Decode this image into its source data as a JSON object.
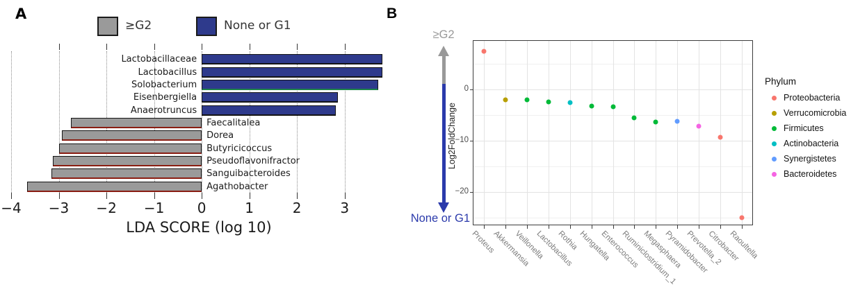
{
  "figure": {
    "panelA_letter": "A",
    "panelB_letter": "B"
  },
  "chart_data": [
    {
      "panel": "A",
      "type": "bar",
      "orientation": "horizontal",
      "xlabel": "LDA SCORE (log 10)",
      "xlim": [
        -4.0,
        3.88
      ],
      "xticks_top": [
        -3,
        -2,
        -1,
        0,
        1,
        2,
        3
      ],
      "xticks_bottom": [
        -4,
        -3,
        -2,
        -1,
        0,
        1,
        2,
        3
      ],
      "gridlines": [
        -4,
        -3,
        -2,
        -1,
        0,
        1,
        2,
        3
      ],
      "grid_style": "dotted",
      "groups": [
        {
          "name": "≥G2",
          "color": "#9a9a9a"
        },
        {
          "name": "None or G1",
          "color": "#2e3a8c"
        }
      ],
      "bars": [
        {
          "taxon": "Lactobacillaceae",
          "value": 3.79,
          "group": "None or G1",
          "edge": "#141414"
        },
        {
          "taxon": "Lactobacillus",
          "value": 3.79,
          "group": "None or G1",
          "edge": "#141414"
        },
        {
          "taxon": "Solobacterium",
          "value": 3.71,
          "group": "None or G1",
          "edge": "#1e8449"
        },
        {
          "taxon": "Eisenbergiella",
          "value": 2.86,
          "group": "None or G1",
          "edge": "#141414"
        },
        {
          "taxon": "Anaerotruncus",
          "value": 2.82,
          "group": "None or G1",
          "edge": "#141414"
        },
        {
          "taxon": "Faecalitalea",
          "value": -2.75,
          "group": "≥G2",
          "edge": "#8a1d12"
        },
        {
          "taxon": "Dorea",
          "value": -2.93,
          "group": "≥G2",
          "edge": "#8a1d12"
        },
        {
          "taxon": "Butyricicoccus",
          "value": -3.0,
          "group": "≥G2",
          "edge": "#8a1d12"
        },
        {
          "taxon": "Pseudoflavonifractor",
          "value": -3.13,
          "group": "≥G2",
          "edge": "#8a1d12"
        },
        {
          "taxon": "Sanguibacteroides",
          "value": -3.16,
          "group": "≥G2",
          "edge": "#8a1d12"
        },
        {
          "taxon": "Agathobacter",
          "value": -3.67,
          "group": "≥G2",
          "edge": "#8a1d12"
        }
      ]
    },
    {
      "panel": "B",
      "type": "scatter",
      "ylabel": "Log2FoldChange",
      "ylim": [
        9.4,
        -26.3
      ],
      "yticks_major": [
        0,
        -10,
        -20
      ],
      "yticks_minor": [
        5,
        -5,
        -15,
        -25
      ],
      "grid": "on",
      "annotation_top": "≥G2",
      "annotation_bottom": "None or G1",
      "legend_title": "Phylum",
      "legend_position": "right",
      "phyla": [
        {
          "name": "Proteobacteria",
          "color": "#F8766D"
        },
        {
          "name": "Verrucomicrobia",
          "color": "#B79F00"
        },
        {
          "name": "Firmicutes",
          "color": "#00BA38"
        },
        {
          "name": "Actinobacteria",
          "color": "#00BFC4"
        },
        {
          "name": "Synergistetes",
          "color": "#619CFF"
        },
        {
          "name": "Bacteroidetes",
          "color": "#F564E3"
        }
      ],
      "points": [
        {
          "taxon": "Proteus",
          "phylum": "Proteobacteria",
          "value": 7.4
        },
        {
          "taxon": "Akkermansia",
          "phylum": "Verrucomicrobia",
          "value": -2.1
        },
        {
          "taxon": "Veillonella",
          "phylum": "Firmicutes",
          "value": -2.0
        },
        {
          "taxon": "Lactobacillus",
          "phylum": "Firmicutes",
          "value": -2.5
        },
        {
          "taxon": "Rothia",
          "phylum": "Actinobacteria",
          "value": -2.6
        },
        {
          "taxon": "Hungatella",
          "phylum": "Firmicutes",
          "value": -3.2
        },
        {
          "taxon": "Enterococcus",
          "phylum": "Firmicutes",
          "value": -3.4
        },
        {
          "taxon": "Ruminiclostridium_1",
          "phylum": "Firmicutes",
          "value": -5.5
        },
        {
          "taxon": "Megasphaera",
          "phylum": "Firmicutes",
          "value": -6.3
        },
        {
          "taxon": "Pyramidobacter",
          "phylum": "Synergistetes",
          "value": -6.2
        },
        {
          "taxon": "Prevotella_2",
          "phylum": "Bacteroidetes",
          "value": -7.2
        },
        {
          "taxon": "Citrobacter",
          "phylum": "Proteobacteria",
          "value": -9.3
        },
        {
          "taxon": "Raoultella",
          "phylum": "Proteobacteria",
          "value": -25.0
        }
      ]
    }
  ]
}
